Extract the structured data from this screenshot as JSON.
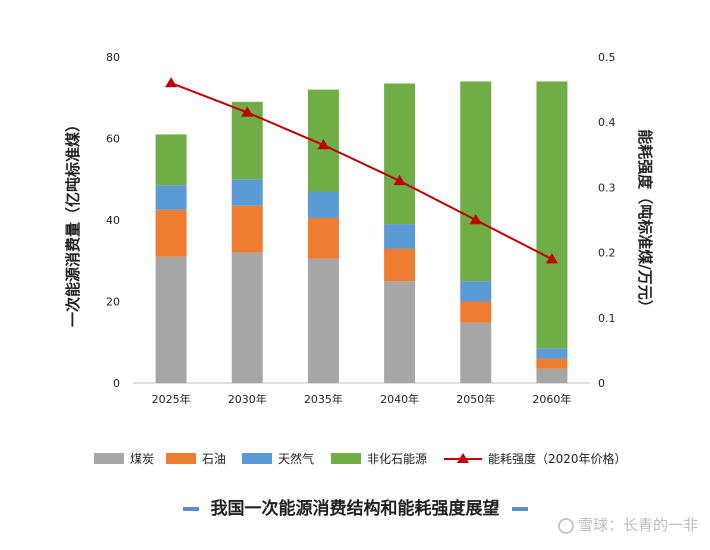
{
  "chart_data": {
    "type": "bar",
    "stacked": true,
    "categories": [
      "2025年",
      "2030年",
      "2035年",
      "2040年",
      "2050年",
      "2060年"
    ],
    "series": [
      {
        "name": "煤炭",
        "color": "#a6a6a6",
        "values": [
          31,
          32,
          30.5,
          25,
          14.8,
          3.5
        ]
      },
      {
        "name": "石油",
        "color": "#ed7d31",
        "values": [
          11.5,
          11.5,
          10,
          8,
          5.2,
          2.5
        ]
      },
      {
        "name": "天然气",
        "color": "#5b9bd5",
        "values": [
          6,
          6.5,
          6.5,
          6,
          5,
          2.5
        ]
      },
      {
        "name": "非化石能源",
        "color": "#70ad47",
        "values": [
          12.5,
          19,
          25,
          34.5,
          49,
          65.5
        ]
      }
    ],
    "line_series": {
      "name": "能耗强度（2020年价格）",
      "color": "#c00000",
      "axis": "right",
      "values": [
        0.46,
        0.415,
        0.365,
        0.31,
        0.25,
        0.19
      ]
    },
    "ylabel": "一次能源消费量（亿吨标准煤）",
    "y2label": "能耗强度（吨标准煤/万元）",
    "ylim": [
      0,
      80
    ],
    "y2lim": [
      0,
      0.5
    ],
    "yticks": [
      "0",
      "20",
      "40",
      "60",
      "80"
    ],
    "y2ticks": [
      "0",
      "0.1",
      "0.2",
      "0.3",
      "0.4",
      "0.5"
    ],
    "grid": false,
    "legend_position": "bottom"
  },
  "caption": "我国一次能源消费结构和能耗强度展望",
  "watermark": "雪球：长青的一非"
}
